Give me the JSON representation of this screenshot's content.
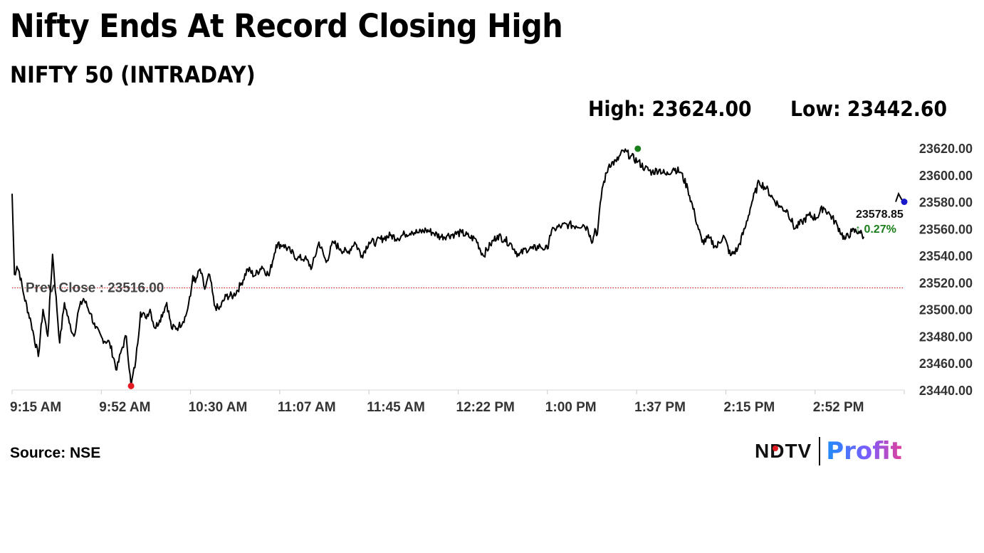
{
  "header": {
    "title": "Nifty Ends At Record Closing High",
    "subtitle": "NIFTY 50 (INTRADAY)",
    "high_text": "High: 23624.00",
    "low_text": "Low: 23442.60"
  },
  "footer": {
    "source": "Source: NSE",
    "logo_ndtv": "NDTV",
    "logo_profit": "Profit"
  },
  "colors": {
    "line": "#000000",
    "prev_close_line": "#cc0000",
    "high_marker": "#1a7f1a",
    "low_marker": "#e31b23",
    "last_marker": "#1a1acc",
    "change_text": "#1a7f1a"
  },
  "chart_data": {
    "type": "line",
    "title": "NIFTY 50 (INTRADAY)",
    "xlabel": "",
    "ylabel": "",
    "x_ticks": [
      "9:15 AM",
      "9:52 AM",
      "10:30 AM",
      "11:07 AM",
      "11:45 AM",
      "12:22 PM",
      "1:00 PM",
      "1:37 PM",
      "2:15 PM",
      "2:52 PM"
    ],
    "y_ticks": [
      "23620.00",
      "23600.00",
      "23580.00",
      "23560.00",
      "23540.00",
      "23520.00",
      "23500.00",
      "23480.00",
      "23460.00",
      "23440.00"
    ],
    "ylim": [
      23440,
      23620
    ],
    "xlim_minutes": [
      555,
      930
    ],
    "series": [
      {
        "x": [
          555,
          556,
          557,
          558,
          560,
          563,
          566,
          568,
          570,
          572,
          575,
          577,
          579,
          581,
          583,
          585,
          588,
          590,
          593,
          596,
          599,
          601,
          603,
          605,
          607,
          609,
          611,
          613,
          615,
          617,
          620,
          622,
          625,
          628,
          630,
          631,
          632,
          634,
          636,
          638,
          640,
          642,
          645,
          648,
          651,
          654,
          657,
          660,
          663,
          666,
          669,
          672,
          675,
          678,
          681,
          684,
          687,
          690,
          693,
          696,
          699,
          702,
          705,
          708,
          711,
          714,
          717,
          720,
          723,
          726,
          729,
          732,
          735,
          738,
          741,
          744,
          747,
          750,
          753,
          756,
          759,
          762,
          765,
          768,
          771,
          774,
          777,
          779,
          780,
          781,
          783,
          786,
          789,
          792,
          795,
          797,
          798,
          799,
          800,
          801,
          803,
          806,
          809,
          812,
          815,
          818,
          821,
          824,
          827,
          830,
          833,
          836,
          839,
          842,
          845,
          848,
          851,
          854,
          857,
          860,
          863,
          866,
          869,
          872,
          875,
          878,
          881,
          884,
          887,
          890,
          893,
          896,
          899,
          902,
          905,
          908,
          911,
          913
        ],
        "values": [
          23586,
          23526,
          23532,
          23528,
          23510,
          23490,
          23465,
          23500,
          23480,
          23541,
          23475,
          23505,
          23490,
          23480,
          23500,
          23508,
          23497,
          23486,
          23478,
          23475,
          23455,
          23470,
          23480,
          23443,
          23462,
          23498,
          23494,
          23500,
          23486,
          23492,
          23505,
          23486,
          23487,
          23495,
          23510,
          23525,
          23520,
          23530,
          23515,
          23526,
          23503,
          23500,
          23510,
          23510,
          23518,
          23530,
          23525,
          23532,
          23525,
          23548,
          23548,
          23543,
          23538,
          23538,
          23531,
          23550,
          23535,
          23550,
          23545,
          23542,
          23550,
          23540,
          23550,
          23550,
          23553,
          23555,
          23553,
          23556,
          23558,
          23557,
          23559,
          23557,
          23554,
          23555,
          23556,
          23557,
          23554,
          23552,
          23540,
          23548,
          23555,
          23552,
          23548,
          23540,
          23545,
          23545,
          23547,
          23545,
          23545,
          23555,
          23560,
          23562,
          23563,
          23562,
          23563,
          23560,
          23555,
          23550,
          23560,
          23556,
          23590,
          23608,
          23610,
          23618,
          23614,
          23610,
          23605,
          23602,
          23604,
          23600,
          23605,
          23602,
          23590,
          23570,
          23550,
          23553,
          23546,
          23555,
          23540,
          23545,
          23560,
          23580,
          23595,
          23590,
          23582,
          23576,
          23573,
          23560,
          23565,
          23570,
          23568,
          23576,
          23570,
          23562,
          23552,
          23558,
          23558,
          23554
        ]
      }
    ],
    "prev_close": 23516.0,
    "prev_close_label": "Prev Close : 23516.00",
    "high": {
      "x": 818,
      "value": 23619.5
    },
    "low": {
      "x": 605,
      "value": 23443
    },
    "last_value_label": "23578.85",
    "change_label": "↑ 0.27%",
    "grid": false
  }
}
